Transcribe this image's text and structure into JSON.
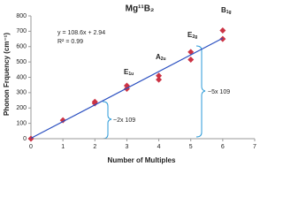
{
  "chart_data": {
    "type": "scatter",
    "title": "Mg¹¹B₂",
    "x_label": "Number of Multiples",
    "y_label": "Phonon Frquency (cm⁻¹)",
    "xlim": [
      0,
      7
    ],
    "xticks": [
      0,
      1,
      2,
      3,
      4,
      5,
      6,
      7
    ],
    "ylim": [
      0,
      800
    ],
    "yticks": [
      0,
      100,
      200,
      300,
      400,
      500,
      600,
      700,
      800
    ],
    "series": [
      {
        "type": "scatter",
        "color": "#cc3344",
        "x": [
          0,
          1,
          2,
          2,
          3,
          3,
          4,
          4,
          5,
          5,
          6,
          6
        ],
        "values": [
          0,
          120,
          230,
          240,
          325,
          345,
          385,
          410,
          515,
          565,
          650,
          705
        ]
      },
      {
        "type": "line",
        "color": "#2a4fc0",
        "x": [
          0,
          6
        ],
        "values": [
          2.94,
          654.54
        ]
      }
    ],
    "equation": "y = 108.6x + 2.94",
    "r_squared": "R² = 0.99",
    "mode_labels": [
      {
        "text": "E",
        "sub": "1u"
      },
      {
        "text": "A",
        "sub": "2u"
      },
      {
        "text": "E",
        "sub": "2g"
      },
      {
        "text": "B",
        "sub": "1g"
      }
    ],
    "brackets": [
      "~2x 109",
      "~5x 109"
    ]
  }
}
